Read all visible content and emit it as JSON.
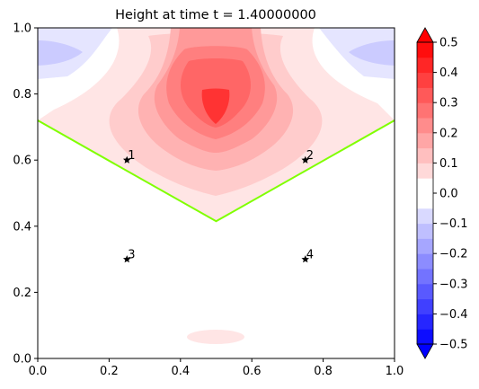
{
  "chart_data": {
    "type": "contourf",
    "title": "Height at time t =      1.40000000",
    "xlim": [
      0,
      1
    ],
    "ylim": [
      0,
      1
    ],
    "xticks": [
      "0.0",
      "0.2",
      "0.4",
      "0.6",
      "0.8",
      "1.0"
    ],
    "yticks": [
      "0.0",
      "0.2",
      "0.4",
      "0.6",
      "0.8",
      "1.0"
    ],
    "grid": false,
    "boundary_line": {
      "color": "#80ff00",
      "points": [
        [
          0,
          0.72
        ],
        [
          0.5,
          0.415
        ],
        [
          1,
          0.72
        ]
      ]
    },
    "markers": [
      {
        "label": "1",
        "x": 0.25,
        "y": 0.6
      },
      {
        "label": "2",
        "x": 0.75,
        "y": 0.6
      },
      {
        "label": "3",
        "x": 0.25,
        "y": 0.3
      },
      {
        "label": "4",
        "x": 0.75,
        "y": 0.3
      }
    ],
    "colorbar": {
      "range": [
        -0.5,
        0.5
      ],
      "extend": "both",
      "ticks": [
        "0.5",
        "0.4",
        "0.3",
        "0.2",
        "0.1",
        "0.0",
        "−0.1",
        "−0.2",
        "−0.3",
        "−0.4",
        "−0.5"
      ],
      "colors": {
        "min": "#0000ff",
        "mid": "#ffffff",
        "max": "#ff0000"
      }
    }
  }
}
